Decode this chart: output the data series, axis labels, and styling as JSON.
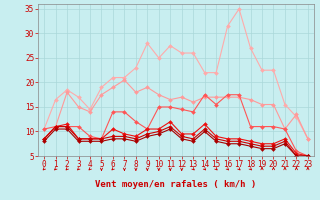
{
  "x": [
    0,
    1,
    2,
    3,
    4,
    5,
    6,
    7,
    8,
    9,
    10,
    11,
    12,
    13,
    14,
    15,
    16,
    17,
    18,
    19,
    20,
    21,
    22,
    23
  ],
  "series": [
    {
      "name": "rafales_max",
      "color": "#ffaaaa",
      "linewidth": 0.8,
      "markersize": 2.0,
      "values": [
        10.5,
        16.5,
        18.5,
        17.0,
        14.5,
        19.0,
        21.0,
        21.0,
        23.0,
        28.0,
        25.0,
        27.5,
        26.0,
        26.0,
        22.0,
        22.0,
        31.5,
        35.0,
        27.0,
        22.5,
        22.5,
        15.5,
        13.0,
        8.5
      ]
    },
    {
      "name": "rafales_mid",
      "color": "#ff9999",
      "linewidth": 0.8,
      "markersize": 2.0,
      "values": [
        8.5,
        11.0,
        18.0,
        15.0,
        14.0,
        17.5,
        19.0,
        20.5,
        18.0,
        19.0,
        17.5,
        16.5,
        17.0,
        16.0,
        17.0,
        17.0,
        17.0,
        17.0,
        16.5,
        15.5,
        15.5,
        10.5,
        13.5,
        8.5
      ]
    },
    {
      "name": "vent_high",
      "color": "#ff5555",
      "linewidth": 0.8,
      "markersize": 2.0,
      "values": [
        10.5,
        11.0,
        11.0,
        11.0,
        9.0,
        8.5,
        14.0,
        14.0,
        12.0,
        10.5,
        15.0,
        15.0,
        14.5,
        14.0,
        17.5,
        15.5,
        17.5,
        17.5,
        11.0,
        11.0,
        11.0,
        10.5,
        6.0,
        5.0
      ]
    },
    {
      "name": "vent_mid",
      "color": "#ee1111",
      "linewidth": 0.8,
      "markersize": 2.0,
      "values": [
        8.5,
        11.0,
        11.5,
        8.5,
        8.5,
        8.5,
        10.5,
        9.5,
        9.0,
        10.5,
        10.5,
        12.0,
        9.5,
        9.5,
        11.5,
        9.0,
        8.5,
        8.5,
        8.0,
        7.5,
        7.5,
        8.5,
        5.5,
        5.0
      ]
    },
    {
      "name": "vent_low1",
      "color": "#cc0000",
      "linewidth": 0.8,
      "markersize": 2.0,
      "values": [
        8.5,
        11.0,
        11.0,
        8.5,
        8.5,
        8.5,
        9.0,
        9.0,
        8.5,
        9.5,
        10.0,
        11.0,
        9.0,
        8.5,
        10.5,
        8.5,
        8.0,
        8.0,
        7.5,
        7.0,
        7.0,
        8.0,
        5.0,
        5.0
      ]
    },
    {
      "name": "vent_low2",
      "color": "#aa0000",
      "linewidth": 0.8,
      "markersize": 2.0,
      "values": [
        8.0,
        10.5,
        10.5,
        8.0,
        8.0,
        8.0,
        8.5,
        8.5,
        8.0,
        9.0,
        9.5,
        10.5,
        8.5,
        8.0,
        10.0,
        8.0,
        7.5,
        7.5,
        7.0,
        6.5,
        6.5,
        7.5,
        5.0,
        5.0
      ]
    }
  ],
  "arrow_directions": [
    315,
    315,
    315,
    315,
    315,
    0,
    315,
    0,
    0,
    0,
    0,
    0,
    0,
    45,
    45,
    45,
    45,
    45,
    45,
    180,
    180,
    180,
    180,
    180
  ],
  "xlabel": "Vent moyen/en rafales ( km/h )",
  "xlim_min": -0.5,
  "xlim_max": 23.5,
  "ylim_min": 5,
  "ylim_max": 36,
  "yticks": [
    5,
    10,
    15,
    20,
    25,
    30,
    35
  ],
  "xticks": [
    0,
    1,
    2,
    3,
    4,
    5,
    6,
    7,
    8,
    9,
    10,
    11,
    12,
    13,
    14,
    15,
    16,
    17,
    18,
    19,
    20,
    21,
    22,
    23
  ],
  "background_color": "#c8eef0",
  "grid_color": "#aad8da",
  "text_color": "#cc0000",
  "tick_fontsize": 5.5,
  "xlabel_fontsize": 6.5
}
